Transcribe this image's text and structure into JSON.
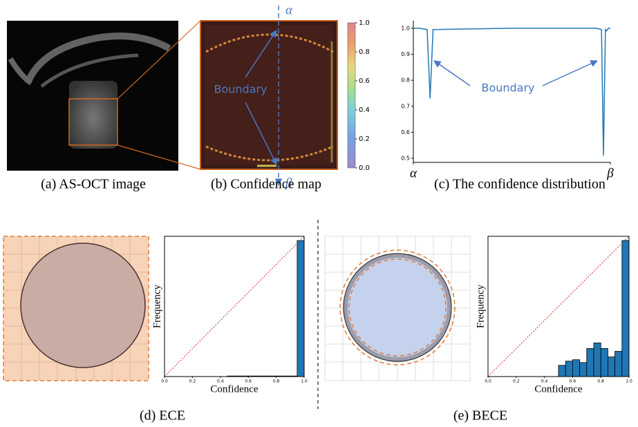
{
  "figure": {
    "captions": [
      "(a) AS-OCT image",
      "(b) Confidence map"
    ],
    "map_labels": {
      "top": "α",
      "bottom": "β",
      "annotation": "Boundary"
    },
    "colorbar": {
      "lim": [
        0,
        1.0
      ],
      "ticks": [
        {
          "value": 0,
          "label": "0.0"
        },
        0.2,
        0.4,
        0.6,
        0.8,
        {
          "value": 1.0,
          "label": "1.0"
        }
      ]
    }
  },
  "chart_data": [
    {
      "type": "line",
      "caption": "(c) The confidence distribution",
      "annotation": "Boundary",
      "color": "#1f77b4",
      "x": [
        0,
        0.03,
        0.07,
        0.085,
        0.1,
        0.5,
        0.93,
        0.955,
        0.965,
        0.975,
        0.98,
        0.99,
        1.0
      ],
      "values": [
        1.0,
        1.0,
        0.995,
        0.73,
        0.995,
        1.0,
        1.0,
        0.995,
        0.51,
        0.995,
        0.99,
        1.0,
        1.0
      ],
      "xlim": [
        0,
        1
      ],
      "ylim": [
        0.484,
        1.029
      ],
      "xticks": [
        {
          "value": 0,
          "label": "α"
        },
        {
          "value": 1,
          "label": "β"
        }
      ],
      "yticks": [
        0.5,
        0.6,
        0.7,
        0.8,
        0.9,
        {
          "value": 1.0,
          "label": "1.0"
        }
      ]
    },
    {
      "type": "histogram",
      "caption": "(d) ECE",
      "xlabel": "Confidence",
      "ylabel": "Frequency",
      "color": "#1f77b4",
      "diagonal": true,
      "bins": [
        0,
        0.05,
        0.1,
        0.15,
        0.2,
        0.25,
        0.3,
        0.35,
        0.4,
        0.45,
        0.5,
        0.55,
        0.6,
        0.65,
        0.7,
        0.75,
        0.8,
        0.85,
        0.9,
        0.95,
        1.0
      ],
      "values": [
        0,
        0,
        0,
        0,
        0,
        0,
        0,
        0,
        0,
        0.004,
        0.004,
        0.004,
        0.004,
        0.004,
        0.004,
        0.004,
        0.004,
        0.004,
        0.004,
        0.97
      ],
      "xlim": [
        0,
        1
      ],
      "ylim": [
        0,
        1
      ],
      "xticks": [
        {
          "value": 0,
          "label": "0.0"
        },
        0.2,
        0.4,
        0.6,
        0.8,
        {
          "value": 1.0,
          "label": "1.0"
        }
      ]
    },
    {
      "type": "histogram",
      "caption": "(e) BECE",
      "xlabel": "Confidence",
      "ylabel": "Frequency",
      "color": "#1f77b4",
      "diagonal": true,
      "bins": [
        0,
        0.05,
        0.1,
        0.15,
        0.2,
        0.25,
        0.3,
        0.35,
        0.4,
        0.45,
        0.5,
        0.55,
        0.6,
        0.65,
        0.7,
        0.75,
        0.8,
        0.85,
        0.9,
        0.95,
        1.0
      ],
      "values": [
        0,
        0,
        0,
        0,
        0,
        0,
        0,
        0,
        0,
        0,
        0.08,
        0.11,
        0.12,
        0.1,
        0.2,
        0.24,
        0.2,
        0.14,
        0.18,
        0.97
      ],
      "xlim": [
        0,
        1
      ],
      "ylim": [
        0,
        1
      ],
      "xticks": [
        {
          "value": 0,
          "label": "0.0"
        },
        0.2,
        0.4,
        0.6,
        0.8,
        {
          "value": 1.0,
          "label": "1.0"
        }
      ]
    }
  ]
}
